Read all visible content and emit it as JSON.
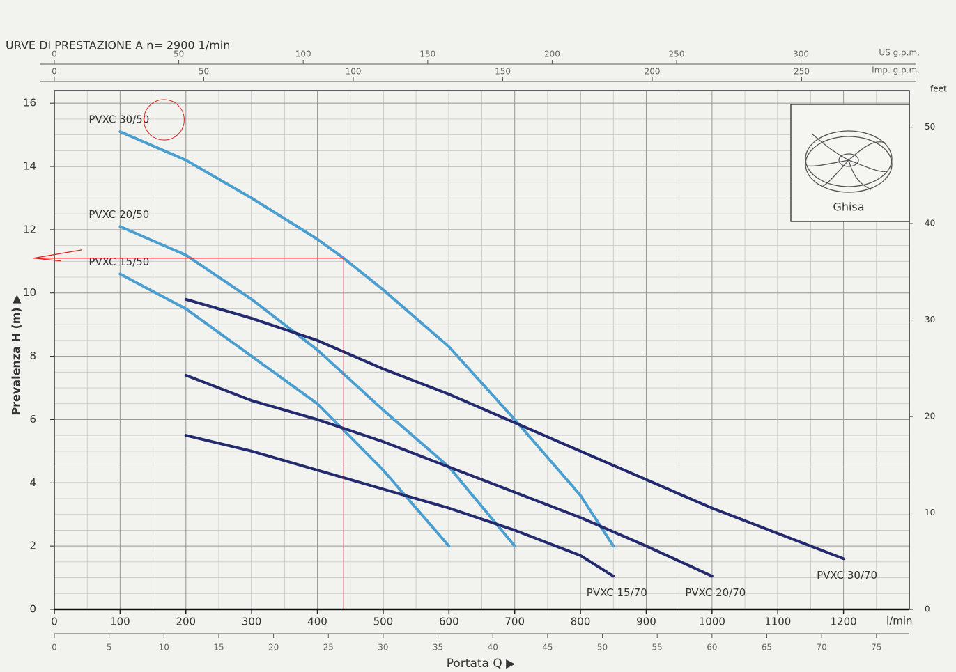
{
  "chart_data": {
    "type": "line",
    "title": "URVE DI PRESTAZIONE A  n= 2900 1/min",
    "xlabel": "Portata Q ▶",
    "ylabel": "Prevalenza H (m) ▶",
    "x_unit": "l/min",
    "y2label": "feet",
    "xlim": [
      0,
      1300
    ],
    "xticks": [
      0,
      100,
      200,
      300,
      400,
      500,
      600,
      700,
      800,
      900,
      1000,
      1100,
      1200
    ],
    "ylim": [
      0,
      16.4
    ],
    "yticks": [
      0,
      2,
      4,
      6,
      8,
      10,
      12,
      14,
      16
    ],
    "y2lim": [
      0,
      53.8
    ],
    "y2ticks": [
      0,
      10,
      20,
      30,
      40,
      50
    ],
    "grid": true,
    "top_axes": [
      {
        "label": "US g.p.m.",
        "xlim": [
          0,
          343.5
        ],
        "xticks": [
          0,
          50,
          100,
          150,
          200,
          250,
          300
        ]
      },
      {
        "label": "Imp. g.p.m.",
        "xlim": [
          0,
          286
        ],
        "xticks": [
          0,
          50,
          100,
          150,
          200,
          250
        ]
      }
    ],
    "bottom_axis2": {
      "xlim": [
        0,
        78
      ],
      "xticks": [
        0,
        5,
        10,
        15,
        20,
        25,
        30,
        35,
        40,
        45,
        50,
        55,
        60,
        65,
        70,
        75
      ]
    },
    "series": [
      {
        "name": "PVXC 30/50",
        "color": "#4a9fd0",
        "x": [
          100,
          200,
          300,
          400,
          440,
          500,
          600,
          700,
          800,
          850
        ],
        "values": [
          15.1,
          14.2,
          13.0,
          11.7,
          11.1,
          10.1,
          8.3,
          6.0,
          3.6,
          2.0
        ]
      },
      {
        "name": "PVXC 20/50",
        "color": "#4a9fd0",
        "x": [
          100,
          200,
          300,
          400,
          500,
          600,
          700
        ],
        "values": [
          12.1,
          11.2,
          9.8,
          8.2,
          6.3,
          4.5,
          2.0
        ]
      },
      {
        "name": "PVXC 15/50",
        "color": "#4a9fd0",
        "x": [
          100,
          200,
          300,
          400,
          500,
          600
        ],
        "values": [
          10.6,
          9.5,
          8.0,
          6.5,
          4.4,
          2.0
        ]
      },
      {
        "name": "PVXC 30/70",
        "color": "#232a6e",
        "x": [
          200,
          300,
          400,
          500,
          600,
          700,
          800,
          900,
          1000,
          1100,
          1200
        ],
        "values": [
          9.8,
          9.2,
          8.5,
          7.6,
          6.8,
          5.9,
          5.0,
          4.1,
          3.2,
          2.4,
          1.6
        ]
      },
      {
        "name": "PVXC 20/70",
        "color": "#232a6e",
        "x": [
          200,
          300,
          400,
          500,
          600,
          700,
          800,
          900,
          1000
        ],
        "values": [
          7.4,
          6.6,
          6.0,
          5.3,
          4.5,
          3.7,
          2.9,
          2.0,
          1.05
        ]
      },
      {
        "name": "PVXC 15/70",
        "color": "#232a6e",
        "x": [
          200,
          300,
          400,
          500,
          600,
          700,
          800,
          850
        ],
        "values": [
          5.5,
          5.0,
          4.4,
          3.8,
          3.2,
          2.5,
          1.7,
          1.05
        ]
      }
    ],
    "marker": {
      "x": 440,
      "y": 11.1,
      "color": "#e02020"
    },
    "inset": {
      "label": "Ghisa"
    }
  }
}
